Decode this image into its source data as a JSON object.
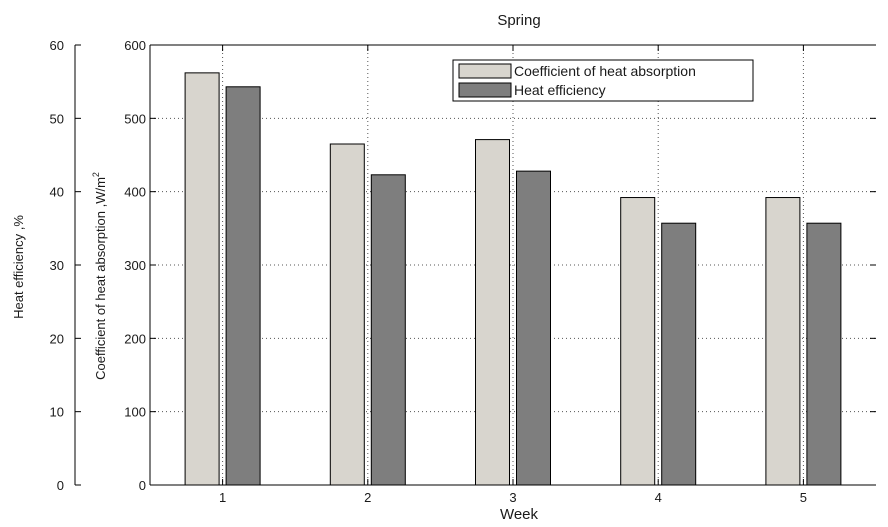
{
  "chart_data": {
    "type": "bar",
    "title": "Spring",
    "xlabel": "Week",
    "ylabel_left": "Heat efficiency ,%",
    "ylabel_right": "Coefficient of heat absorption ,W/m",
    "ylabel_right_superscript": "2",
    "categories": [
      "1",
      "2",
      "3",
      "4",
      "5"
    ],
    "series": [
      {
        "name": "Coefficient of heat absorption",
        "values": [
          562,
          465,
          471,
          392,
          392
        ],
        "axis": "right",
        "color": "#d8d5ce"
      },
      {
        "name": "Heat efficiency",
        "values": [
          54.3,
          42.3,
          42.8,
          35.7,
          35.7
        ],
        "axis": "left",
        "color": "#7e7e7e"
      }
    ],
    "ylim_inner": [
      0,
      600
    ],
    "yticks_inner": [
      "0",
      "100",
      "200",
      "300",
      "400",
      "500",
      "600"
    ],
    "ylim_outer": [
      0,
      60
    ],
    "yticks_outer": [
      "0",
      "10",
      "20",
      "30",
      "40",
      "50",
      "60"
    ],
    "grid": true,
    "legend_position": "top-right"
  }
}
